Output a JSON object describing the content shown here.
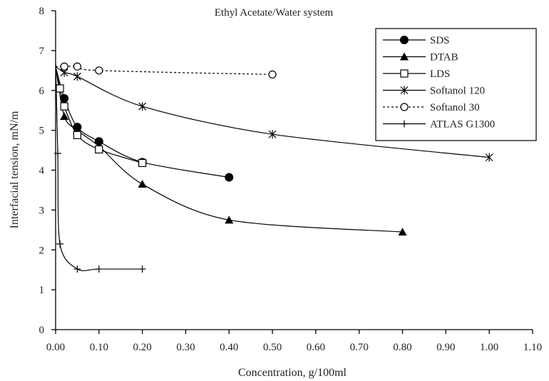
{
  "chart_data": {
    "type": "line",
    "title": "Ethyl Acetate/Water system",
    "xlabel": "Concentration, g/100ml",
    "ylabel": "Interfacial tension, mN/m",
    "xlim": [
      0,
      1.1
    ],
    "ylim": [
      0,
      8
    ],
    "x_ticks": [
      "0.00",
      "0.10",
      "0.20",
      "0.30",
      "0.40",
      "0.50",
      "0.60",
      "0.70",
      "0.80",
      "0.90",
      "1.00",
      "1.10"
    ],
    "y_ticks": [
      "0",
      "1",
      "2",
      "3",
      "4",
      "5",
      "6",
      "7",
      "8"
    ],
    "grid": false,
    "legend_position": "top-right",
    "series": [
      {
        "name": "SDS",
        "marker": "filled-circle",
        "line_style": "solid",
        "points": [
          [
            0.0,
            6.6
          ],
          [
            0.02,
            5.8
          ],
          [
            0.05,
            5.08
          ],
          [
            0.1,
            4.72
          ],
          [
            0.2,
            4.2
          ],
          [
            0.4,
            3.82
          ]
        ]
      },
      {
        "name": "DTAB",
        "marker": "filled-triangle",
        "line_style": "solid",
        "points": [
          [
            0.0,
            6.6
          ],
          [
            0.02,
            5.35
          ],
          [
            0.05,
            5.0
          ],
          [
            0.1,
            4.6
          ],
          [
            0.2,
            3.65
          ],
          [
            0.4,
            2.75
          ],
          [
            0.8,
            2.45
          ]
        ]
      },
      {
        "name": "LDS",
        "marker": "open-square",
        "line_style": "solid",
        "points": [
          [
            0.0,
            6.6
          ],
          [
            0.01,
            6.05
          ],
          [
            0.02,
            5.6
          ],
          [
            0.05,
            4.88
          ],
          [
            0.1,
            4.52
          ],
          [
            0.2,
            4.18
          ]
        ]
      },
      {
        "name": "Softanol 120",
        "marker": "asterisk",
        "line_style": "solid",
        "points": [
          [
            0.0,
            6.6
          ],
          [
            0.02,
            6.45
          ],
          [
            0.05,
            6.35
          ],
          [
            0.2,
            5.6
          ],
          [
            0.5,
            4.9
          ],
          [
            1.0,
            4.32
          ]
        ]
      },
      {
        "name": "Softanol 30",
        "marker": "open-circle",
        "line_style": "dotted",
        "points": [
          [
            0.0,
            6.6
          ],
          [
            0.02,
            6.6
          ],
          [
            0.05,
            6.6
          ],
          [
            0.1,
            6.5
          ],
          [
            0.5,
            6.4
          ]
        ]
      },
      {
        "name": "ATLAS G1300",
        "marker": "plus",
        "line_style": "solid",
        "points": [
          [
            0.0,
            6.68
          ],
          [
            0.005,
            4.42
          ],
          [
            0.01,
            2.15
          ],
          [
            0.05,
            1.52
          ],
          [
            0.1,
            1.52
          ],
          [
            0.2,
            1.52
          ]
        ]
      }
    ]
  }
}
